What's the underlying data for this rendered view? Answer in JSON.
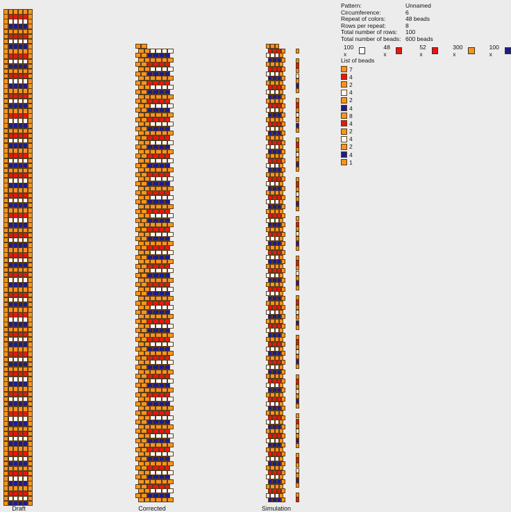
{
  "colors": {
    "white": "#ffffff",
    "red": "#e8160f",
    "orange": "#f7941d",
    "blue": "#1c1c8f"
  },
  "info": [
    {
      "key": "Pattern:",
      "value": "Unnamed"
    },
    {
      "key": "Circumference:",
      "value": "6"
    },
    {
      "key": "Repeat of colors:",
      "value": "48 beads"
    },
    {
      "key": "Rows per repeat:",
      "value": "8"
    },
    {
      "key": "Total number of rows:",
      "value": "100"
    },
    {
      "key": "Total number of beads:",
      "value": "600 beads"
    }
  ],
  "bead_counts": [
    {
      "label": "100 x",
      "color": "white"
    },
    {
      "label": "48 x",
      "color": "red"
    },
    {
      "label": "52 x",
      "color": "red"
    },
    {
      "label": "300 x",
      "color": "orange"
    },
    {
      "label": "100 x",
      "color": "blue"
    }
  ],
  "list_title": "List of beads",
  "list_of_beads": [
    {
      "color": "orange",
      "count": "7"
    },
    {
      "color": "red",
      "count": "4"
    },
    {
      "color": "orange",
      "count": "2"
    },
    {
      "color": "white",
      "count": "4"
    },
    {
      "color": "orange",
      "count": "2"
    },
    {
      "color": "blue",
      "count": "4"
    },
    {
      "color": "orange",
      "count": "8"
    },
    {
      "color": "red",
      "count": "4"
    },
    {
      "color": "orange",
      "count": "2"
    },
    {
      "color": "white",
      "count": "4"
    },
    {
      "color": "orange",
      "count": "2"
    },
    {
      "color": "blue",
      "count": "4"
    },
    {
      "color": "orange",
      "count": "1"
    }
  ],
  "panels": {
    "draft": "Draft",
    "corrected": "Corrected",
    "simulation": "Simulation"
  },
  "circumference": 6,
  "rows": 100
}
